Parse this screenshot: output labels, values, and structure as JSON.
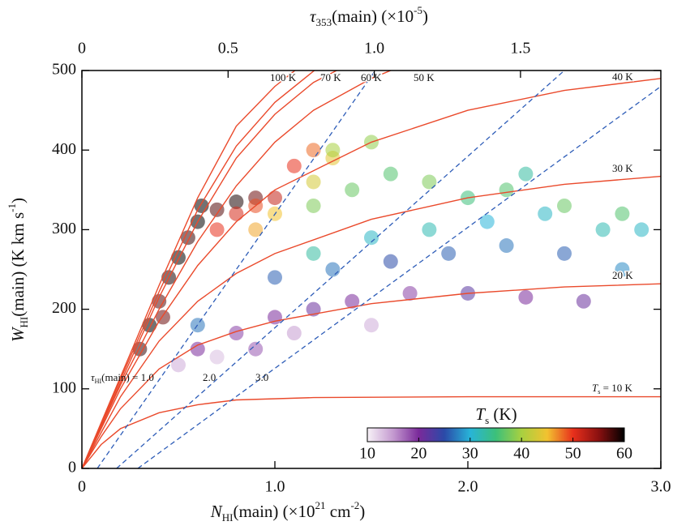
{
  "chart_data": {
    "type": "scatter",
    "x_label": [
      "N",
      "HI",
      "(main) (×10",
      "21",
      " cm",
      "-2",
      ")"
    ],
    "y_label": [
      "W",
      "HI",
      "(main) (K km s",
      "-1",
      ")"
    ],
    "x2_label": [
      "τ",
      "353",
      "(main) (×10",
      "-5",
      ")"
    ],
    "xlim": [
      0,
      3
    ],
    "xticks": [
      0,
      {
        "value": 1,
        "label": "1.0"
      },
      {
        "value": 2,
        "label": "2.0"
      },
      {
        "value": 3,
        "label": "3.0"
      }
    ],
    "x2lim": [
      0,
      1.98
    ],
    "x2ticks": [
      0,
      0.5,
      {
        "value": 1,
        "label": "1.0"
      },
      1.5
    ],
    "ylim": [
      0,
      500
    ],
    "yticks": [
      0,
      100,
      200,
      300,
      400,
      500
    ],
    "curve_color": "#ea4a2c",
    "tau_color": "#2e5db8",
    "ts_curves": [
      {
        "label": [
          "T",
          "s",
          " = 10 K"
        ],
        "x": [
          0,
          0.1,
          0.2,
          0.4,
          0.6,
          0.8,
          1.2,
          2,
          3
        ],
        "y": [
          0,
          30,
          50,
          70,
          80,
          86,
          89,
          90,
          90
        ]
      },
      {
        "label": [
          "20 K"
        ],
        "x": [
          0,
          0.1,
          0.2,
          0.4,
          0.6,
          0.8,
          1.0,
          1.5,
          2,
          2.5,
          3
        ],
        "y": [
          0,
          40,
          75,
          125,
          155,
          172,
          185,
          207,
          220,
          228,
          232
        ]
      },
      {
        "label": [
          "30 K"
        ],
        "x": [
          0,
          0.2,
          0.4,
          0.6,
          0.8,
          1.0,
          1.5,
          2,
          2.5,
          3
        ],
        "y": [
          0,
          90,
          160,
          210,
          245,
          270,
          313,
          340,
          357,
          367
        ]
      },
      {
        "label": [
          "40 K"
        ],
        "x": [
          0,
          0.2,
          0.4,
          0.6,
          0.8,
          1.0,
          1.25,
          1.5,
          2,
          2.5,
          3
        ],
        "y": [
          0,
          100,
          185,
          255,
          310,
          350,
          380,
          410,
          450,
          475,
          490
        ]
      },
      {
        "label": [
          "50 K"
        ],
        "x": [
          0,
          0.2,
          0.4,
          0.6,
          0.8,
          1.0,
          1.2,
          1.5,
          1.7
        ],
        "y": [
          0,
          105,
          200,
          285,
          355,
          410,
          450,
          490,
          510
        ]
      },
      {
        "label": [
          "60 K"
        ],
        "x": [
          0,
          0.2,
          0.4,
          0.6,
          0.8,
          1.0,
          1.2,
          1.4
        ],
        "y": [
          0,
          108,
          215,
          310,
          390,
          445,
          485,
          510
        ]
      },
      {
        "label": [
          "70 K"
        ],
        "x": [
          0,
          0.2,
          0.4,
          0.6,
          0.8,
          1.0,
          1.23
        ],
        "y": [
          0,
          112,
          222,
          325,
          405,
          460,
          505
        ]
      },
      {
        "label": [
          "100 K"
        ],
        "x": [
          0,
          0.2,
          0.4,
          0.6,
          0.8,
          1.0,
          1.13
        ],
        "y": [
          0,
          115,
          230,
          340,
          430,
          480,
          505
        ]
      }
    ],
    "tau_lines": [
      {
        "label": [
          "τ",
          "HI",
          "(main) = 1.0"
        ],
        "x": [
          0.08,
          1.52
        ],
        "y": [
          0,
          500
        ]
      },
      {
        "label": [
          "2.0"
        ],
        "x": [
          0.18,
          2.5
        ],
        "y": [
          0,
          500
        ]
      },
      {
        "label": [
          "3.0"
        ],
        "x": [
          0.29,
          3.0
        ],
        "y": [
          0,
          480
        ]
      }
    ],
    "scatter": {
      "x": [
        0.3,
        0.35,
        0.4,
        0.45,
        0.5,
        0.55,
        0.6,
        0.7,
        0.8,
        0.9,
        0.62,
        0.42,
        0.7,
        0.8,
        0.9,
        1.0,
        1.1,
        1.2,
        1.0,
        1.2,
        1.3,
        0.9,
        1.2,
        1.4,
        1.6,
        1.8,
        2.0,
        2.2,
        2.5,
        2.8,
        1.3,
        1.5,
        1.5,
        1.8,
        2.1,
        2.4,
        2.7,
        2.9,
        1.2,
        2.3,
        1.0,
        1.3,
        1.6,
        1.9,
        2.2,
        2.5,
        2.8,
        0.6,
        0.6,
        0.8,
        1.0,
        1.2,
        1.4,
        1.7,
        2.0,
        2.3,
        2.6,
        0.9,
        0.5,
        0.7,
        1.1,
        1.5
      ],
      "y": [
        150,
        180,
        210,
        240,
        265,
        290,
        310,
        325,
        335,
        340,
        330,
        190,
        300,
        320,
        330,
        340,
        380,
        400,
        320,
        360,
        390,
        300,
        330,
        350,
        370,
        360,
        340,
        350,
        330,
        320,
        400,
        410,
        290,
        300,
        310,
        320,
        300,
        300,
        270,
        370,
        240,
        250,
        260,
        270,
        280,
        270,
        250,
        180,
        150,
        170,
        190,
        200,
        210,
        220,
        220,
        215,
        210,
        150,
        130,
        140,
        170,
        180
      ],
      "ts": [
        58,
        60,
        57,
        59,
        60,
        58,
        60,
        57,
        59,
        56,
        60,
        56,
        50,
        51,
        49,
        52,
        50,
        48,
        45,
        43,
        44,
        46,
        38,
        37,
        36,
        38,
        35,
        36,
        37,
        36,
        40,
        39,
        31,
        32,
        30,
        31,
        32,
        31,
        33,
        33,
        26,
        27,
        25,
        26,
        27,
        26,
        28,
        27,
        20,
        19,
        20,
        21,
        20,
        19,
        22,
        20,
        21,
        18,
        14,
        13,
        15,
        14
      ]
    },
    "colorbar": {
      "title": [
        "T",
        "s",
        " (K)"
      ],
      "lim": [
        10,
        60
      ],
      "ticks": [
        10,
        20,
        30,
        40,
        50,
        60
      ],
      "stops": [
        {
          "value": 10,
          "color": "#f7f2f7"
        },
        {
          "value": 15,
          "color": "#c49ad0"
        },
        {
          "value": 20,
          "color": "#7a2a9a"
        },
        {
          "value": 25,
          "color": "#2a4aa8"
        },
        {
          "value": 30,
          "color": "#28b4d8"
        },
        {
          "value": 35,
          "color": "#3cc07a"
        },
        {
          "value": 40,
          "color": "#a8d040"
        },
        {
          "value": 45,
          "color": "#f2c230"
        },
        {
          "value": 50,
          "color": "#e8301c"
        },
        {
          "value": 55,
          "color": "#8a1010"
        },
        {
          "value": 60,
          "color": "#000000"
        }
      ]
    }
  }
}
